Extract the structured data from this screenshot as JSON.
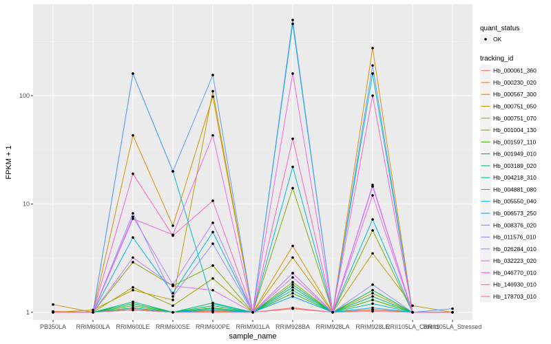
{
  "chart_data": {
    "type": "line",
    "xlabel": "sample_name",
    "ylabel": "FPKM + 1",
    "y_scale": "log10",
    "ylim": [
      0.85,
      700
    ],
    "y_ticks": [
      1,
      10,
      100
    ],
    "y_tick_labels": [
      "1",
      "10",
      "100"
    ],
    "categories": [
      "PB350LA",
      "RRIM600LA",
      "RRIM600LE",
      "RRIM600SE",
      "RRIM600PE",
      "RRIM901LA",
      "RRIM928BA",
      "RRIM928LA",
      "RRIM928LE",
      "RRII105LA_Control",
      "RRII105LA_Stressed"
    ],
    "grid": true,
    "legend_position": "right",
    "points_legend": {
      "title": "quant_status",
      "label": "OK"
    },
    "legend_title": "tracking_id",
    "series": [
      {
        "name": "Hb_000061_360",
        "color": "#F8766D",
        "values": [
          1.0,
          1.0,
          1.05,
          1.0,
          1.02,
          1.0,
          1.1,
          1.0,
          1.05,
          1.0,
          1.0
        ]
      },
      {
        "name": "Hb_000230_020",
        "color": "#EA8331",
        "values": [
          1.02,
          1.0,
          1.08,
          1.0,
          1.03,
          1.0,
          1.08,
          1.0,
          1.06,
          1.0,
          1.0
        ]
      },
      {
        "name": "Hb_000567_300",
        "color": "#D89000",
        "values": [
          1.18,
          1.0,
          43.0,
          6.3,
          98.0,
          1.0,
          4.1,
          1.0,
          275.0,
          1.0,
          1.0
        ]
      },
      {
        "name": "Hb_000751_050",
        "color": "#C09B00",
        "values": [
          1.0,
          1.05,
          1.6,
          1.3,
          110.0,
          1.0,
          3.2,
          1.0,
          3.5,
          1.15,
          1.0
        ]
      },
      {
        "name": "Hb_000751_070",
        "color": "#A3A500",
        "values": [
          1.0,
          1.0,
          1.7,
          1.15,
          2.05,
          1.0,
          1.9,
          1.0,
          1.5,
          1.0,
          1.0
        ]
      },
      {
        "name": "Hb_001004_130",
        "color": "#7CAE00",
        "values": [
          1.0,
          1.0,
          2.9,
          1.75,
          2.7,
          1.0,
          14.0,
          1.0,
          5.7,
          1.0,
          1.0
        ]
      },
      {
        "name": "Hb_001597_110",
        "color": "#39B600",
        "values": [
          1.0,
          1.0,
          1.15,
          1.0,
          1.1,
          1.0,
          1.5,
          1.0,
          1.3,
          1.0,
          1.0
        ]
      },
      {
        "name": "Hb_001949_010",
        "color": "#00BB4E",
        "values": [
          1.0,
          1.0,
          1.2,
          1.0,
          1.15,
          1.0,
          1.7,
          1.0,
          1.6,
          1.0,
          1.0
        ]
      },
      {
        "name": "Hb_003189_020",
        "color": "#00BF7D",
        "values": [
          1.0,
          1.0,
          1.25,
          1.0,
          1.22,
          1.0,
          1.8,
          1.0,
          1.4,
          1.0,
          1.0
        ]
      },
      {
        "name": "Hb_004218_310",
        "color": "#00C1A3",
        "values": [
          1.0,
          1.0,
          1.1,
          1.0,
          1.08,
          1.0,
          1.6,
          1.0,
          1.2,
          1.0,
          1.0
        ]
      },
      {
        "name": "Hb_004881_080",
        "color": "#00BFC4",
        "values": [
          1.0,
          1.0,
          160.0,
          20.0,
          1.2,
          1.0,
          460.0,
          1.0,
          160.0,
          1.0,
          1.0
        ]
      },
      {
        "name": "Hb_005550_040",
        "color": "#00B8E7",
        "values": [
          1.0,
          1.0,
          4.9,
          1.5,
          5.5,
          1.0,
          22.0,
          1.0,
          7.2,
          1.0,
          1.0
        ]
      },
      {
        "name": "Hb_006573_250",
        "color": "#00A9FF",
        "values": [
          1.0,
          1.0,
          1.05,
          1.0,
          1.05,
          1.0,
          1.4,
          1.0,
          1.1,
          1.0,
          1.0
        ]
      },
      {
        "name": "Hb_008376_020",
        "color": "#619CFF",
        "values": [
          1.0,
          1.0,
          160.0,
          20.0,
          155.0,
          1.0,
          500.0,
          1.0,
          190.0,
          1.0,
          1.08
        ]
      },
      {
        "name": "Hb_011576_010",
        "color": "#9590FF",
        "values": [
          1.0,
          1.0,
          8.2,
          1.4,
          4.3,
          1.0,
          2.3,
          1.0,
          1.8,
          1.0,
          1.0
        ]
      },
      {
        "name": "Hb_026284_010",
        "color": "#B983FF",
        "values": [
          1.0,
          1.0,
          7.6,
          1.8,
          6.7,
          1.0,
          2.1,
          1.0,
          15.0,
          1.0,
          1.0
        ]
      },
      {
        "name": "Hb_032223_020",
        "color": "#DB72FB",
        "values": [
          1.0,
          1.0,
          3.2,
          1.75,
          1.6,
          1.0,
          2.3,
          1.0,
          14.5,
          1.0,
          1.0
        ]
      },
      {
        "name": "Hb_046770_010",
        "color": "#F265E8",
        "values": [
          1.0,
          1.0,
          7.3,
          5.2,
          43.0,
          1.0,
          160.0,
          1.0,
          12.0,
          1.0,
          1.0
        ]
      },
      {
        "name": "Hb_146930_010",
        "color": "#FF61C3",
        "values": [
          1.0,
          1.0,
          19.0,
          5.1,
          10.7,
          1.0,
          40.0,
          1.0,
          100.0,
          1.0,
          1.0
        ]
      },
      {
        "name": "Hb_178703_010",
        "color": "#FF6C91",
        "values": [
          1.0,
          1.0,
          1.05,
          1.0,
          1.0,
          1.0,
          1.08,
          1.0,
          1.02,
          1.0,
          1.0
        ]
      }
    ]
  }
}
